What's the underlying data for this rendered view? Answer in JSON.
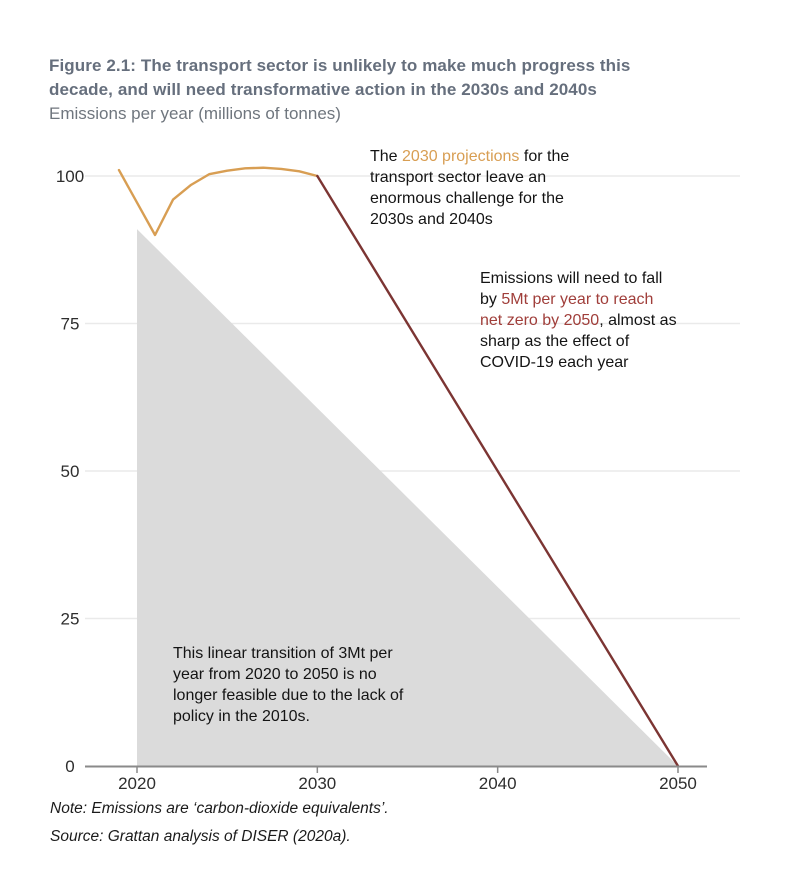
{
  "chart_data": {
    "type": "line",
    "title": "Figure 2.1: The transport sector is unlikely to make much progress this\ndecade, and will need transformative action in the 2030s and 2040s",
    "subtitle": "Emissions per year (millions of tonnes)",
    "note": "Note: Emissions are ‘carbon-dioxide equivalents’.",
    "source": "Source: Grattan analysis of DISER (2020a).",
    "xlabel": "",
    "ylabel": "Emissions per year (millions of tonnes)",
    "xticks": [
      2020,
      2030,
      2040,
      2050
    ],
    "yticks": [
      0,
      25,
      50,
      75,
      100
    ],
    "xlim": [
      2017,
      2053
    ],
    "ylim": [
      0,
      105
    ],
    "grid": "horizontal",
    "legend": "none",
    "series": [
      {
        "name": "historical-and-2030-projections",
        "color": "#D89E53",
        "points": [
          [
            2019,
            101
          ],
          [
            2020,
            95.5
          ],
          [
            2021,
            90
          ],
          [
            2022,
            96
          ],
          [
            2023,
            98.5
          ],
          [
            2024,
            100.3
          ],
          [
            2025,
            100.9
          ],
          [
            2026,
            101.3
          ],
          [
            2027,
            101.4
          ],
          [
            2028,
            101.2
          ],
          [
            2029,
            100.8
          ],
          [
            2030,
            100
          ]
        ]
      },
      {
        "name": "net-zero-path-5mt-per-year",
        "color": "#7C3533",
        "points": [
          [
            2030,
            100
          ],
          [
            2050,
            0
          ]
        ]
      }
    ],
    "area": {
      "name": "linear-transition-3mt-per-year",
      "color": "#DBDBDB",
      "points": [
        [
          2020,
          91
        ],
        [
          2050,
          0
        ],
        [
          2020,
          0
        ]
      ]
    },
    "annotations": {
      "projections": {
        "pre": "The ",
        "highlight": "2030 projections",
        "highlight_color": "#D89E53",
        "post": " for the\ntransport sector leave an\nenormous challenge for the\n2030s and 2040s"
      },
      "netzero": {
        "pre": "Emissions will need to fall\nby ",
        "highlight": "5Mt per year to reach\nnet zero by 2050",
        "highlight_color": "#A03E3A",
        "post": ", almost as\nsharp as the effect of\nCOVID-19 each year"
      },
      "linear": {
        "text": "This linear transition of 3Mt per\nyear from 2020 to 2050 is no\nlonger feasible due to the lack of\npolicy in the 2010s."
      }
    },
    "colors": {
      "orange": "#D89E53",
      "dark_red_line": "#7C3533",
      "dark_red_text": "#A03E3A",
      "triangle_gray": "#DBDBDB",
      "gridline": "#EAEAEA",
      "axis": "#8A8A8A",
      "tick_label": "#2E2E2E",
      "title_slate": "#666F7D"
    }
  }
}
